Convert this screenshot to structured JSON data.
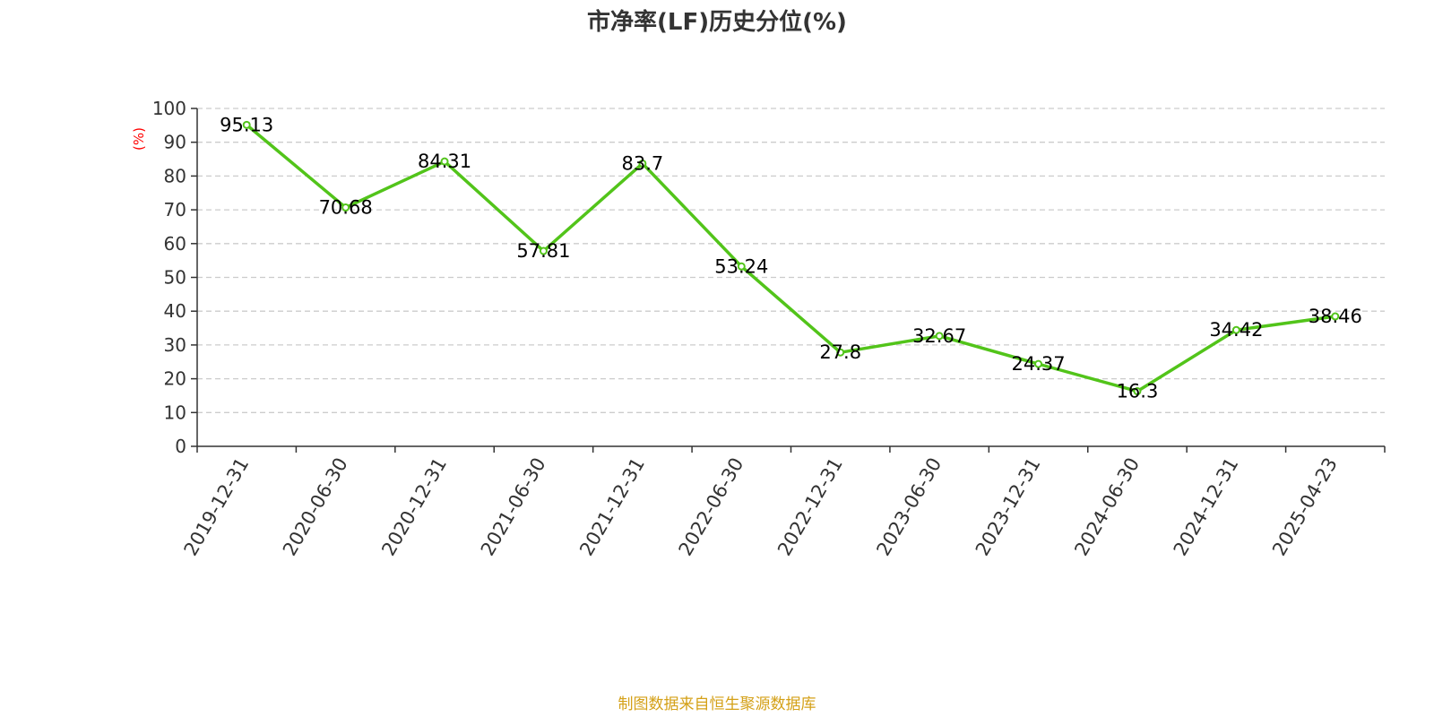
{
  "chart_data": {
    "type": "line",
    "title": "市净率(LF)历史分位(%)",
    "ylabel": "(%)",
    "xlabel": "",
    "ylim": [
      0,
      100
    ],
    "yticks": [
      0,
      10,
      20,
      30,
      40,
      50,
      60,
      70,
      80,
      90,
      100
    ],
    "grid": true,
    "categories": [
      "2019-12-31",
      "2020-06-30",
      "2020-12-31",
      "2021-06-30",
      "2021-12-31",
      "2022-06-30",
      "2022-12-31",
      "2023-06-30",
      "2023-12-31",
      "2024-06-30",
      "2024-12-31",
      "2025-04-23"
    ],
    "series": [
      {
        "values": [
          95.13,
          70.68,
          84.31,
          57.81,
          83.7,
          53.24,
          27.8,
          32.67,
          24.37,
          16.3,
          34.42,
          38.46
        ],
        "labels": [
          "95.13",
          "70.68",
          "84.31",
          "57.81",
          "83.7",
          "53.24",
          "27.8",
          "32.67",
          "24.37",
          "16.3",
          "34.42",
          "38.46"
        ]
      }
    ],
    "colors": {
      "line": "#52c41a",
      "ylabel": "#ff0000",
      "source": "#d4a017",
      "grid": "#cccccc",
      "axis": "#333333"
    }
  },
  "source_note": "制图数据来自恒生聚源数据库"
}
